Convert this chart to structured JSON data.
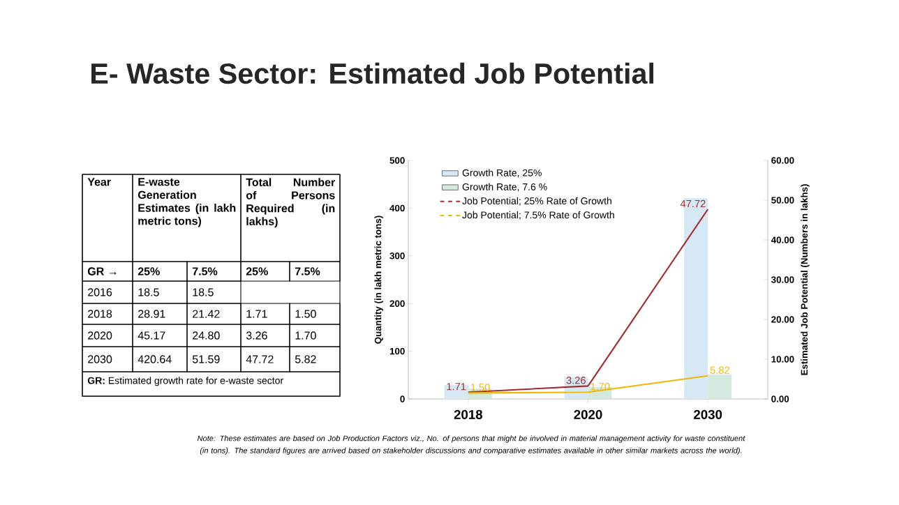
{
  "chart_data": [
    {
      "type": "other",
      "annotations": [
        "Year",
        "E-waste Generation Estimates (in lakh metric tons)",
        "Total Number of Persons Required (in lakhs)",
        "GR →",
        "25%",
        "7.5%",
        "25%",
        "7.5%",
        "2016",
        "18.5",
        "18.5",
        "2018",
        "28.91",
        "21.42",
        "1.71",
        "1.50",
        "2020",
        "45.17",
        "24.80",
        "3.26",
        "1.70",
        "2030",
        "420.64",
        "51.59",
        "47.72",
        "5.82",
        "**GR:** Estimated growth rate for e-waste sector"
      ]
    },
    {
      "type": "bar",
      "title": "E- Waste Sector: Estimated Job Potential",
      "ylabel": "Quantity (in lakh metric tons)",
      "y2label": "Estimated Job Potential (Numbers in lakhs)",
      "categories": [
        "2018",
        "2020",
        "2030"
      ],
      "series": [
        {
          "name": "Growth Rate, 25%",
          "color": "#d5e8f4",
          "values": [
            28.91,
            45.17,
            420.64
          ]
        },
        {
          "name": "Growth Rate, 7.6 %",
          "color": "#d4e9dd",
          "values": [
            21.42,
            24.8,
            51.59
          ]
        },
        {
          "name": "Job Potential; 25% Rate of Growth",
          "type": "line",
          "axis": "y2",
          "color": "#a52a2a",
          "values": [
            1.71,
            3.26,
            47.72
          ],
          "value_labels": [
            "1.71",
            "3.26",
            "47.72"
          ]
        },
        {
          "name": "Job Potential; 7.5% Rate of Growth",
          "type": "line",
          "axis": "y2",
          "color": "#f2b705",
          "values": [
            1.5,
            1.7,
            5.82
          ],
          "value_labels": [
            "1.50",
            "1.70",
            "5.82"
          ]
        }
      ],
      "ylim": [
        0,
        500
      ],
      "yticks": [
        0,
        100,
        200,
        300,
        400,
        500
      ],
      "y2lim": [
        0,
        60
      ],
      "y2ticks": [
        {
          "value": 0,
          "label": "0.00"
        },
        {
          "value": 10,
          "label": "10.00"
        },
        {
          "value": 20,
          "label": "20.00"
        },
        {
          "value": 30,
          "label": "30.00"
        },
        {
          "value": 40,
          "label": "40.00"
        },
        {
          "value": 50,
          "label": "50.00"
        },
        {
          "value": 60,
          "label": "60.00"
        }
      ],
      "legend": "top left",
      "annotations": [
        "Note: These estimates are based on Job Production Factors viz., No. of persons that might be involved in material management activity for waste constituent (in tons). The standard figures are arrived based on stakeholder discussions and comparative estimates available in other similar markets across the world)."
      ]
    }
  ]
}
